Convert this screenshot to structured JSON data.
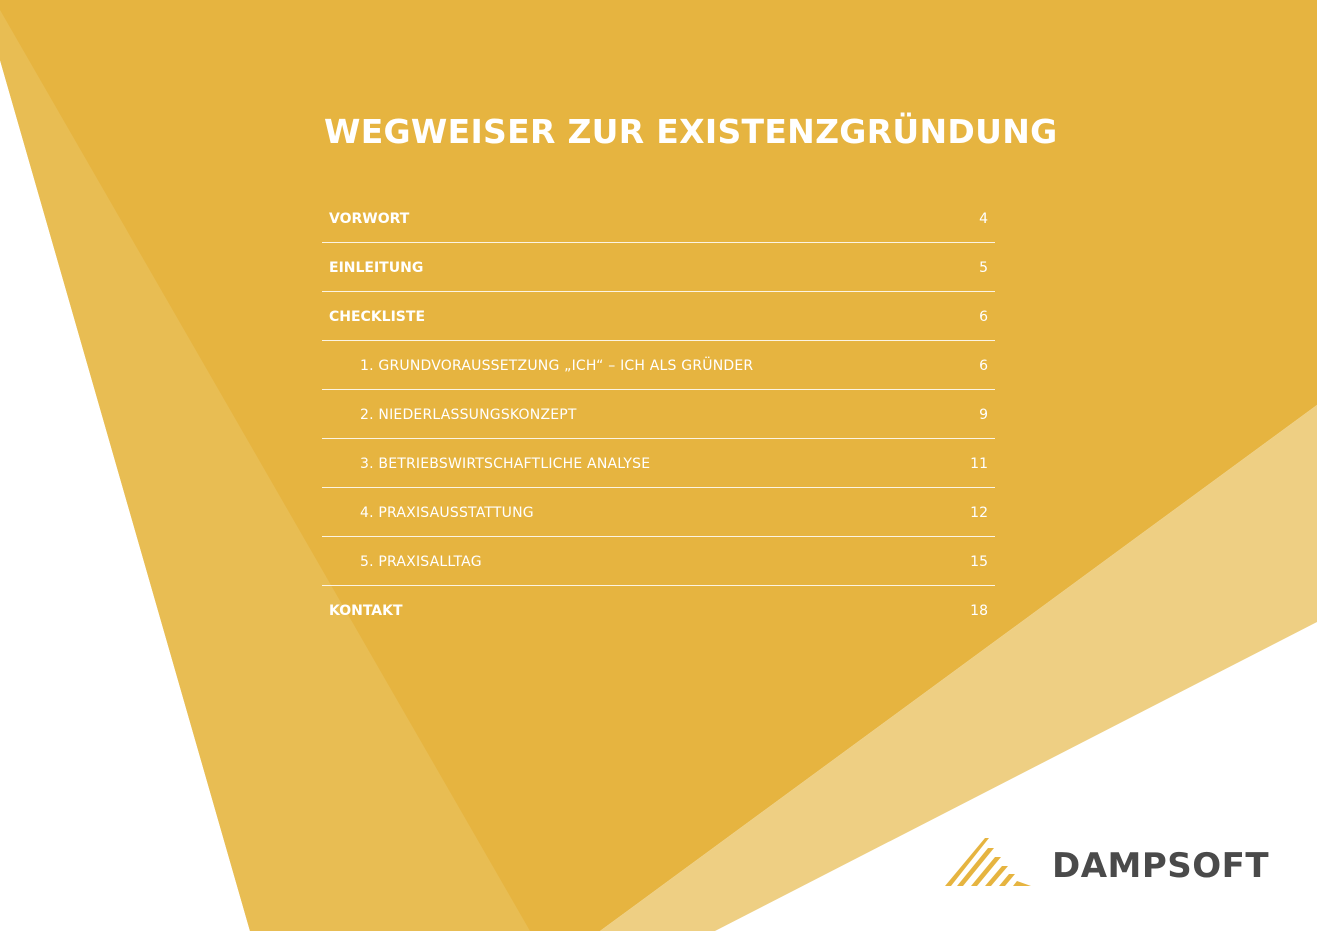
{
  "colors": {
    "background": "#ffffff",
    "primary_yellow": "#e6b440",
    "light_yellow": "#e8bd53",
    "pale_yellow": "#eecf83",
    "text_on_yellow": "#ffffff",
    "logo_gray": "#4a4a4a"
  },
  "document": {
    "title": "WEGWEISER ZUR EXISTENZGRÜNDUNG"
  },
  "toc": [
    {
      "label": "VORWORT",
      "page": "4",
      "level": 1
    },
    {
      "label": "EINLEITUNG",
      "page": "5",
      "level": 1
    },
    {
      "label": "CHECKLISTE",
      "page": "6",
      "level": 1
    },
    {
      "label": "1. GRUNDVORAUSSETZUNG „ICH“ – ICH ALS GRÜNDER",
      "page": "6",
      "level": 2
    },
    {
      "label": "2. NIEDERLASSUNGSKONZEPT",
      "page": "9",
      "level": 2
    },
    {
      "label": "3. BETRIEBSWIRTSCHAFTLICHE ANALYSE",
      "page": "11",
      "level": 2
    },
    {
      "label": "4. PRAXISAUSSTATTUNG",
      "page": "12",
      "level": 2
    },
    {
      "label": "5. PRAXISALLTAG",
      "page": "15",
      "level": 2
    },
    {
      "label": "KONTAKT",
      "page": "18",
      "level": 1
    }
  ],
  "logo": {
    "text": "DAMPSOFT",
    "icon": "dampsoft-logo-icon"
  }
}
